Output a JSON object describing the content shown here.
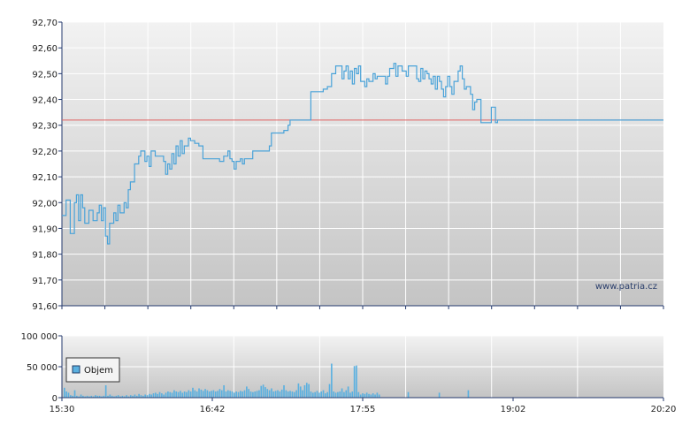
{
  "watermark": "www.patria.cz",
  "colors": {
    "price_line": "#4aa3d9",
    "reference_line": "#e06060",
    "volume_bar": "#5ab0e0",
    "axis": "#243a6e",
    "grid": "#ffffff"
  },
  "chart_data": [
    {
      "type": "line",
      "panel": "price",
      "x_ticks": [
        "15:30",
        "16:42",
        "17:55",
        "19:02",
        "20:20"
      ],
      "y_ticks": [
        "92,70",
        "92,60",
        "92,50",
        "92,40",
        "92,30",
        "92,20",
        "92,10",
        "92,00",
        "91,90",
        "91,80",
        "91,70",
        "91,60"
      ],
      "ylim": [
        91.6,
        92.7
      ],
      "xlim_minutes": [
        0,
        290
      ],
      "reference_value": 92.32,
      "series": [
        {
          "points": [
            [
              0,
              91.95
            ],
            [
              2,
              92.01
            ],
            [
              4,
              91.88
            ],
            [
              6,
              92.0
            ],
            [
              7,
              92.03
            ],
            [
              8,
              91.93
            ],
            [
              9,
              92.03
            ],
            [
              10,
              91.98
            ],
            [
              11,
              91.92
            ],
            [
              13,
              91.97
            ],
            [
              15,
              91.93
            ],
            [
              17,
              91.96
            ],
            [
              18,
              91.99
            ],
            [
              19,
              91.93
            ],
            [
              20,
              91.98
            ],
            [
              21,
              91.87
            ],
            [
              22,
              91.84
            ],
            [
              23,
              91.92
            ],
            [
              25,
              91.96
            ],
            [
              26,
              91.93
            ],
            [
              27,
              91.99
            ],
            [
              28,
              91.96
            ],
            [
              30,
              92.0
            ],
            [
              31,
              91.98
            ],
            [
              32,
              92.05
            ],
            [
              33,
              92.08
            ],
            [
              35,
              92.15
            ],
            [
              37,
              92.18
            ],
            [
              38,
              92.2
            ],
            [
              40,
              92.16
            ],
            [
              41,
              92.18
            ],
            [
              42,
              92.14
            ],
            [
              43,
              92.2
            ],
            [
              45,
              92.18
            ],
            [
              47,
              92.18
            ],
            [
              49,
              92.16
            ],
            [
              50,
              92.11
            ],
            [
              51,
              92.15
            ],
            [
              52,
              92.13
            ],
            [
              53,
              92.19
            ],
            [
              54,
              92.15
            ],
            [
              55,
              92.22
            ],
            [
              56,
              92.18
            ],
            [
              57,
              92.24
            ],
            [
              58,
              92.19
            ],
            [
              59,
              92.22
            ],
            [
              61,
              92.25
            ],
            [
              62,
              92.24
            ],
            [
              64,
              92.23
            ],
            [
              66,
              92.22
            ],
            [
              68,
              92.17
            ],
            [
              70,
              92.17
            ],
            [
              72,
              92.17
            ],
            [
              74,
              92.17
            ],
            [
              76,
              92.16
            ],
            [
              78,
              92.18
            ],
            [
              80,
              92.2
            ],
            [
              81,
              92.17
            ],
            [
              82,
              92.16
            ],
            [
              83,
              92.13
            ],
            [
              84,
              92.16
            ],
            [
              86,
              92.17
            ],
            [
              87,
              92.15
            ],
            [
              88,
              92.17
            ],
            [
              90,
              92.17
            ],
            [
              92,
              92.2
            ],
            [
              94,
              92.2
            ],
            [
              96,
              92.2
            ],
            [
              98,
              92.2
            ],
            [
              100,
              92.22
            ],
            [
              101,
              92.27
            ],
            [
              103,
              92.27
            ],
            [
              105,
              92.27
            ],
            [
              107,
              92.28
            ],
            [
              109,
              92.3
            ],
            [
              110,
              92.32
            ],
            [
              112,
              92.32
            ],
            [
              114,
              92.32
            ],
            [
              116,
              92.32
            ],
            [
              118,
              92.32
            ],
            [
              120,
              92.43
            ],
            [
              122,
              92.43
            ],
            [
              124,
              92.43
            ],
            [
              126,
              92.44
            ],
            [
              128,
              92.45
            ],
            [
              130,
              92.5
            ],
            [
              132,
              92.53
            ],
            [
              134,
              92.53
            ],
            [
              135,
              92.48
            ],
            [
              136,
              92.51
            ],
            [
              137,
              92.53
            ],
            [
              138,
              92.48
            ],
            [
              139,
              92.51
            ],
            [
              140,
              92.46
            ],
            [
              141,
              92.52
            ],
            [
              142,
              92.5
            ],
            [
              143,
              92.53
            ],
            [
              144,
              92.47
            ],
            [
              146,
              92.45
            ],
            [
              147,
              92.48
            ],
            [
              148,
              92.47
            ],
            [
              150,
              92.5
            ],
            [
              151,
              92.48
            ],
            [
              152,
              92.49
            ],
            [
              153,
              92.49
            ],
            [
              155,
              92.49
            ],
            [
              156,
              92.46
            ],
            [
              157,
              92.49
            ],
            [
              158,
              92.52
            ],
            [
              160,
              92.54
            ],
            [
              161,
              92.49
            ],
            [
              162,
              92.53
            ],
            [
              164,
              92.51
            ],
            [
              166,
              92.49
            ],
            [
              167,
              92.53
            ],
            [
              168,
              92.53
            ],
            [
              170,
              92.53
            ],
            [
              171,
              92.48
            ],
            [
              172,
              92.47
            ],
            [
              173,
              92.52
            ],
            [
              174,
              92.48
            ],
            [
              175,
              92.51
            ],
            [
              176,
              92.5
            ],
            [
              177,
              92.48
            ],
            [
              178,
              92.46
            ],
            [
              179,
              92.49
            ],
            [
              180,
              92.44
            ],
            [
              181,
              92.49
            ],
            [
              182,
              92.47
            ],
            [
              183,
              92.44
            ],
            [
              184,
              92.41
            ],
            [
              185,
              92.45
            ],
            [
              186,
              92.49
            ],
            [
              187,
              92.45
            ],
            [
              188,
              92.42
            ],
            [
              189,
              92.47
            ],
            [
              190,
              92.47
            ],
            [
              191,
              92.51
            ],
            [
              192,
              92.53
            ],
            [
              193,
              92.48
            ],
            [
              194,
              92.44
            ],
            [
              195,
              92.45
            ],
            [
              197,
              92.42
            ],
            [
              198,
              92.36
            ],
            [
              199,
              92.39
            ],
            [
              200,
              92.4
            ],
            [
              201,
              92.4
            ],
            [
              202,
              92.31
            ],
            [
              204,
              92.31
            ],
            [
              205,
              92.31
            ],
            [
              206,
              92.31
            ],
            [
              207,
              92.37
            ],
            [
              208,
              92.37
            ],
            [
              209,
              92.31
            ],
            [
              210,
              92.32
            ],
            [
              250,
              92.32
            ],
            [
              290,
              92.32
            ]
          ]
        }
      ]
    },
    {
      "type": "bar",
      "panel": "volume",
      "x_ticks": [
        "15:30",
        "16:42",
        "17:55",
        "19:02",
        "20:20"
      ],
      "y_ticks": [
        "100 000",
        "50 000",
        "0"
      ],
      "ylim": [
        0,
        100000
      ],
      "xlim_minutes": [
        0,
        290
      ],
      "series": [
        {
          "name": "Objem",
          "values": [
            16000,
            10000,
            8000,
            4000,
            3000,
            12000,
            3000,
            2000,
            5000,
            3000,
            2000,
            3000,
            2000,
            3000,
            2000,
            4000,
            3000,
            3000,
            2000,
            3000,
            20000,
            3000,
            5000,
            3000,
            2000,
            3000,
            4000,
            2000,
            3000,
            2000,
            4000,
            2000,
            4000,
            3000,
            5000,
            3000,
            6000,
            4000,
            3000,
            5000,
            4000,
            6000,
            5000,
            7000,
            8000,
            6000,
            9000,
            7000,
            5000,
            8000,
            10000,
            9000,
            8000,
            12000,
            10000,
            9000,
            11000,
            8000,
            10000,
            9000,
            12000,
            10000,
            16000,
            12000,
            10000,
            15000,
            13000,
            11000,
            14000,
            12000,
            10000,
            11000,
            12000,
            10000,
            11000,
            14000,
            12000,
            20000,
            10000,
            12000,
            11000,
            10000,
            8000,
            10000,
            9000,
            11000,
            10000,
            12000,
            18000,
            14000,
            10000,
            9000,
            10000,
            11000,
            12000,
            19000,
            21000,
            17000,
            14000,
            12000,
            15000,
            10000,
            11000,
            12000,
            10000,
            13000,
            20000,
            12000,
            10000,
            11000,
            10000,
            9000,
            12000,
            23000,
            18000,
            12000,
            20000,
            24000,
            22000,
            10000,
            8000,
            9000,
            11000,
            8000,
            10000,
            12000,
            7000,
            9000,
            22000,
            55000,
            10000,
            8000,
            9000,
            10000,
            15000,
            9000,
            12000,
            18000,
            8000,
            10000,
            51000,
            52000,
            9000,
            5000,
            7000,
            6000,
            8000,
            6000,
            5000,
            7000,
            5000,
            8000,
            5000,
            0,
            0,
            0,
            0,
            0,
            0,
            0,
            0,
            0,
            0,
            0,
            0,
            0,
            9000,
            0,
            0,
            0,
            0,
            0,
            0,
            0,
            0,
            0,
            0,
            0,
            0,
            0,
            0,
            8000,
            0,
            0,
            0,
            0,
            0,
            0,
            0,
            0,
            0,
            0,
            0,
            0,
            0,
            12000,
            0,
            0,
            0,
            0,
            0,
            0,
            0,
            0,
            0,
            0,
            0,
            0,
            0,
            0,
            0,
            0
          ]
        }
      ]
    }
  ]
}
